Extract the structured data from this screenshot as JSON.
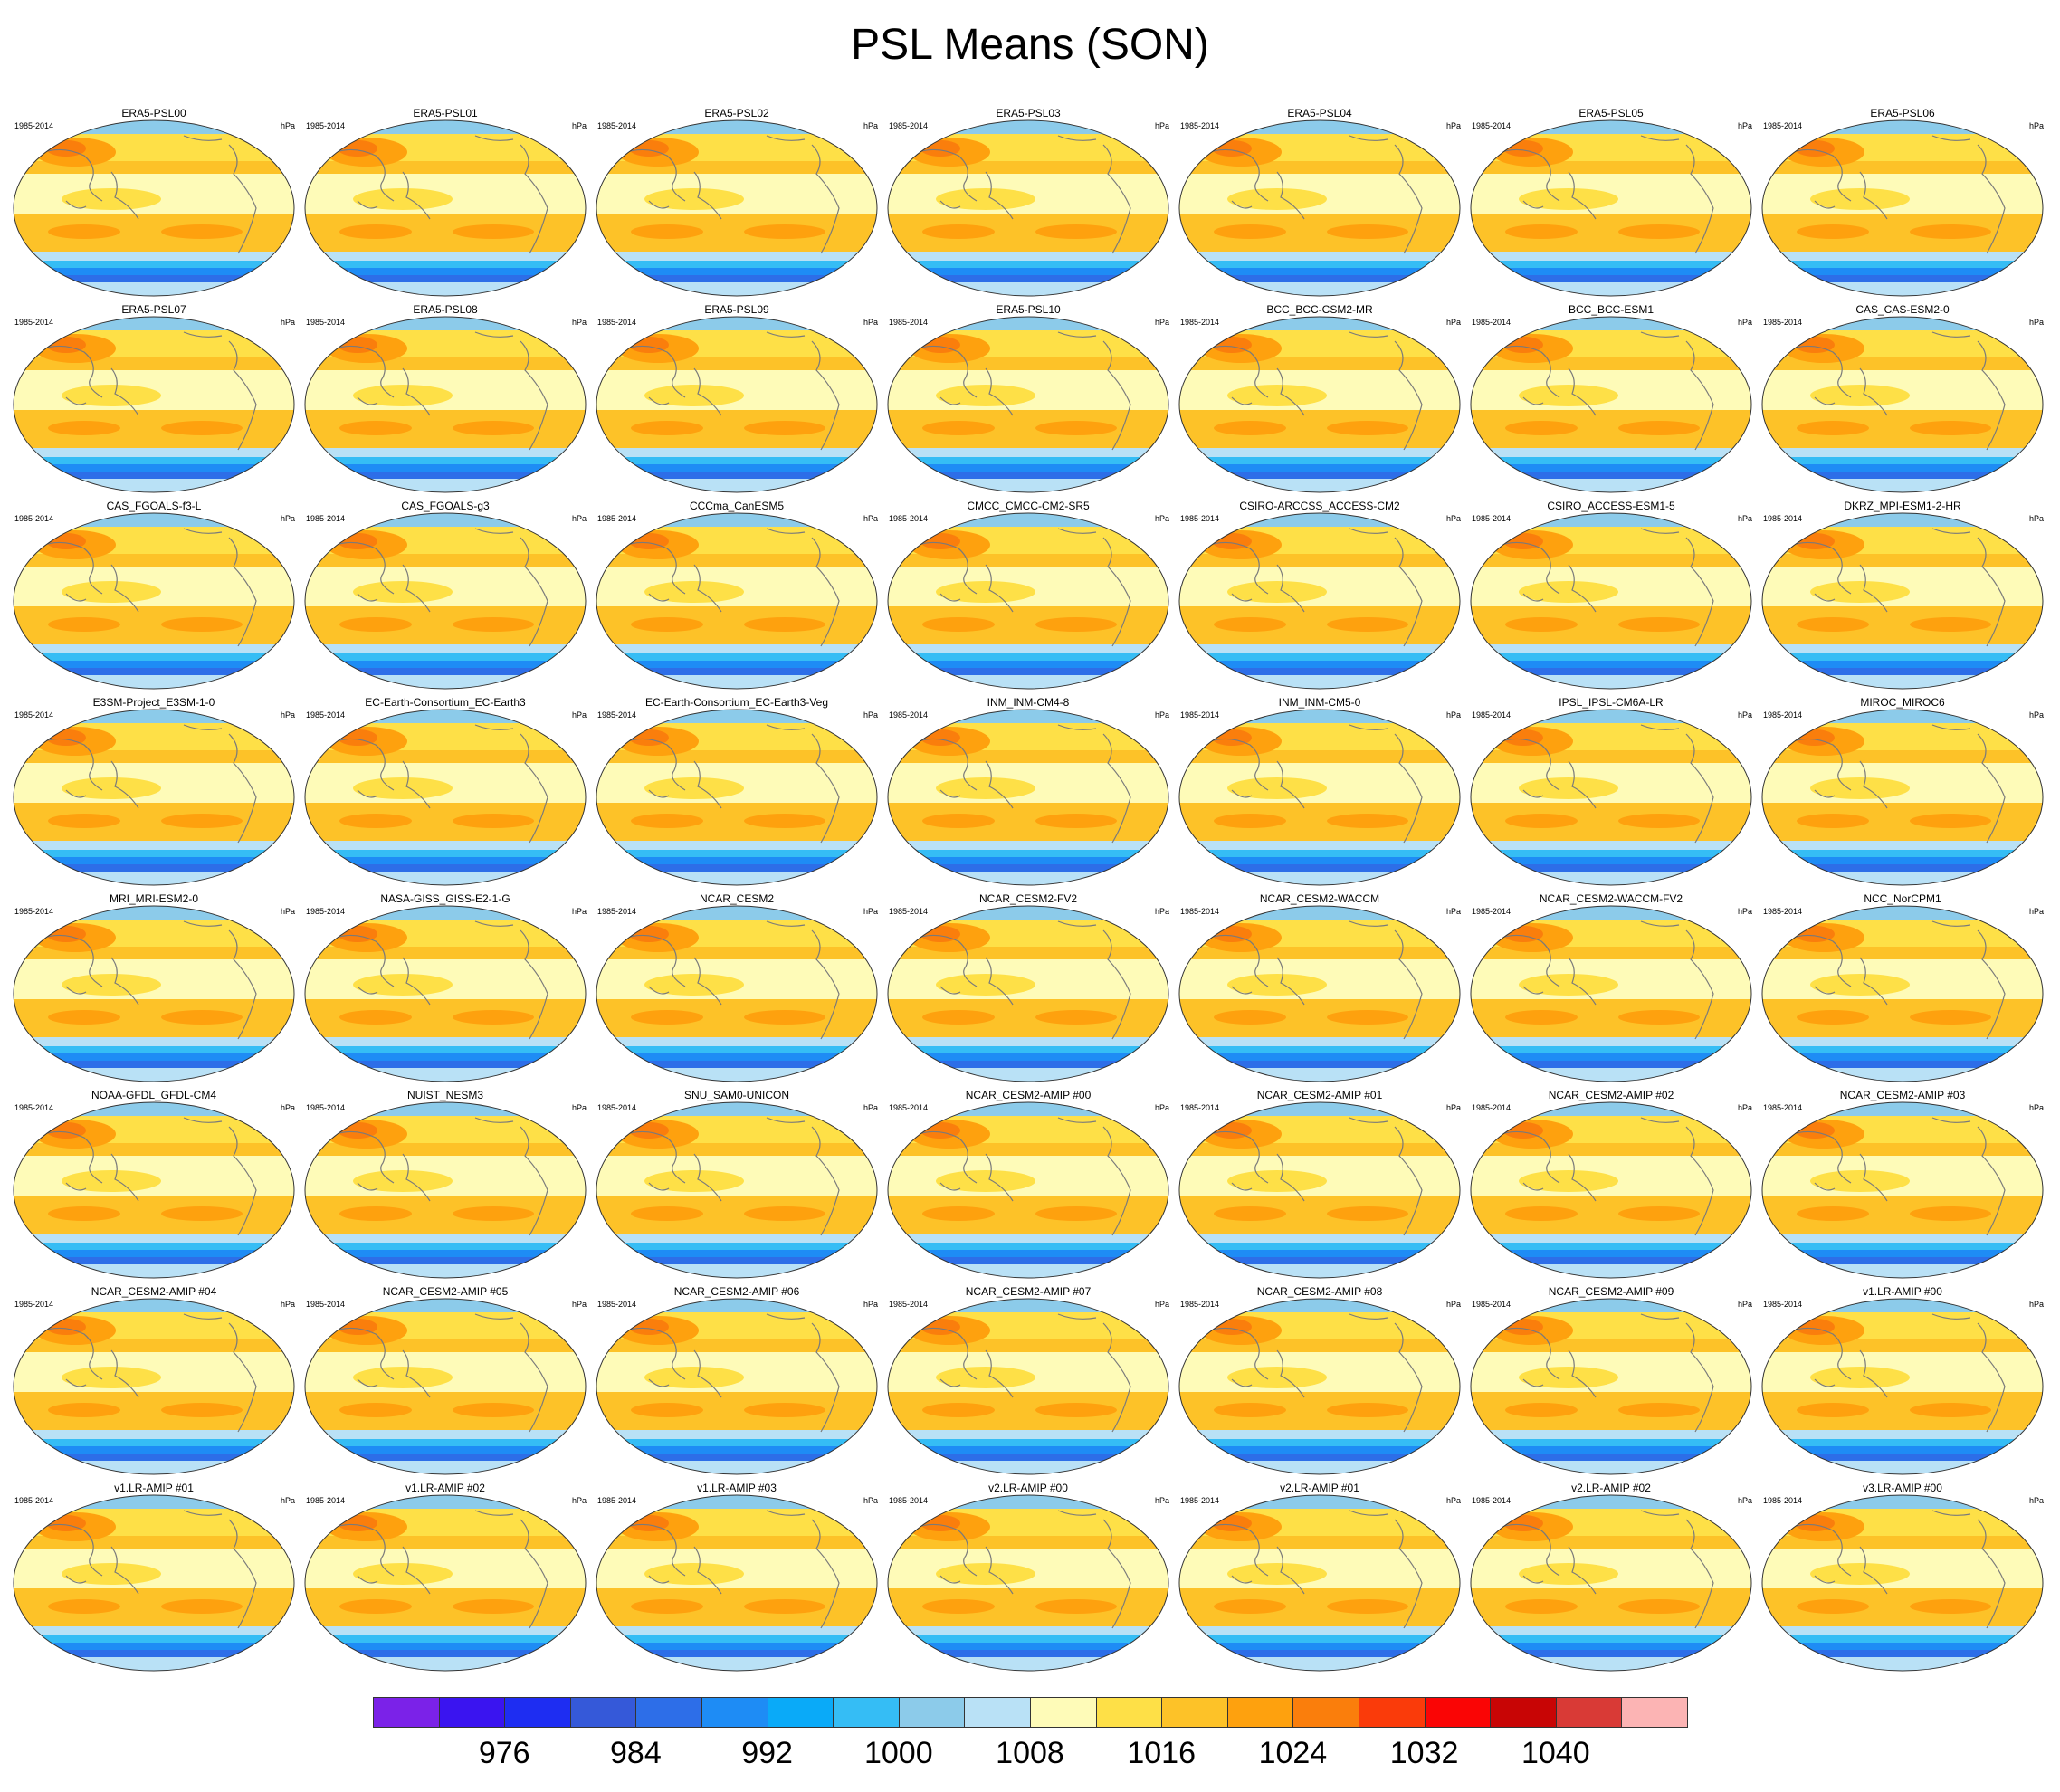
{
  "title": "PSL Means (SON)",
  "period_label": "1985-2014",
  "units_label": "hPa",
  "panels": [
    "ERA5-PSL00",
    "ERA5-PSL01",
    "ERA5-PSL02",
    "ERA5-PSL03",
    "ERA5-PSL04",
    "ERA5-PSL05",
    "ERA5-PSL06",
    "ERA5-PSL07",
    "ERA5-PSL08",
    "ERA5-PSL09",
    "ERA5-PSL10",
    "BCC_BCC-CSM2-MR",
    "BCC_BCC-ESM1",
    "CAS_CAS-ESM2-0",
    "CAS_FGOALS-f3-L",
    "CAS_FGOALS-g3",
    "CCCma_CanESM5",
    "CMCC_CMCC-CM2-SR5",
    "CSIRO-ARCCSS_ACCESS-CM2",
    "CSIRO_ACCESS-ESM1-5",
    "DKRZ_MPI-ESM1-2-HR",
    "E3SM-Project_E3SM-1-0",
    "EC-Earth-Consortium_EC-Earth3",
    "EC-Earth-Consortium_EC-Earth3-Veg",
    "INM_INM-CM4-8",
    "INM_INM-CM5-0",
    "IPSL_IPSL-CM6A-LR",
    "MIROC_MIROC6",
    "MRI_MRI-ESM2-0",
    "NASA-GISS_GISS-E2-1-G",
    "NCAR_CESM2",
    "NCAR_CESM2-FV2",
    "NCAR_CESM2-WACCM",
    "NCAR_CESM2-WACCM-FV2",
    "NCC_NorCPM1",
    "NOAA-GFDL_GFDL-CM4",
    "NUIST_NESM3",
    "SNU_SAM0-UNICON",
    "NCAR_CESM2-AMIP_#00",
    "NCAR_CESM2-AMIP_#01",
    "NCAR_CESM2-AMIP_#02",
    "NCAR_CESM2-AMIP_#03",
    "NCAR_CESM2-AMIP_#04",
    "NCAR_CESM2-AMIP_#05",
    "NCAR_CESM2-AMIP_#06",
    "NCAR_CESM2-AMIP_#07",
    "NCAR_CESM2-AMIP_#08",
    "NCAR_CESM2-AMIP_#09",
    "v1.LR-AMIP_#00",
    "v1.LR-AMIP_#01",
    "v1.LR-AMIP_#02",
    "v1.LR-AMIP_#03",
    "v2.LR-AMIP_#00",
    "v2.LR-AMIP_#01",
    "v2.LR-AMIP_#02",
    "v3.LR-AMIP_#00"
  ],
  "colorbar": {
    "colors": [
      "#7b22e8",
      "#3a14f0",
      "#1e2df2",
      "#3559d9",
      "#2d6ee8",
      "#1e8cf5",
      "#0aaaf8",
      "#35bdf5",
      "#8ccbea",
      "#b9e1f6",
      "#fefbb8",
      "#fee047",
      "#fdc228",
      "#fea10e",
      "#fa7e0c",
      "#fa3b0a",
      "#fa0505",
      "#c80505",
      "#d93a36",
      "#fcb4b4"
    ],
    "labels": [
      "976",
      "984",
      "992",
      "1000",
      "1008",
      "1016",
      "1024",
      "1032",
      "1040"
    ]
  }
}
